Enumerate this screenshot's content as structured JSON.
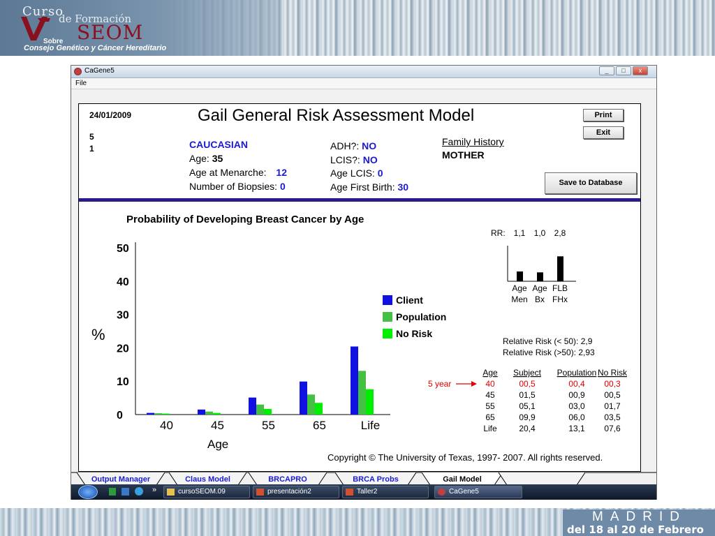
{
  "banner": {
    "curso": "Curso",
    "de_formacion": "de Formación",
    "seom": "SEOM",
    "sobre": "Sobre",
    "consejo": "Consejo Genético y Cáncer Hereditario"
  },
  "footer": {
    "city": "MADRID",
    "dates": "del 18 al 20 de Febrero"
  },
  "window": {
    "title": "CaGene5",
    "menu_file": "File",
    "controls": {
      "minimize": "_",
      "maximize": "□",
      "close": "x"
    }
  },
  "report": {
    "date": "24/01/2009",
    "line1": "5",
    "line2": "1",
    "title": "Gail General Risk Assessment Model",
    "ethnicity": "CAUCASIAN",
    "age_label": "Age:",
    "age_value": "35",
    "menarche_label": "Age at Menarche:",
    "menarche_value": "12",
    "biopsies_label": "Number of Biopsies:",
    "biopsies_value": "0",
    "adh_label": "ADH?:",
    "adh_value": "NO",
    "lcis_label": "LCIS?:",
    "lcis_value": "NO",
    "age_lcis_label": "Age LCIS:",
    "age_lcis_value": "0",
    "first_birth_label": "Age First Birth:",
    "first_birth_value": "30",
    "family_history_label": "Family History",
    "family_history_value": "MOTHER",
    "print_button": "Print",
    "exit_button": "Exit",
    "save_button": "Save to Database",
    "copyright": "Copyright ©  The University of Texas, 1997- 2007.  All rights reserved."
  },
  "chart_data": [
    {
      "type": "bar",
      "title": "Probability of Developing Breast Cancer by Age",
      "xlabel": "Age",
      "ylabel": "%",
      "categories": [
        "40",
        "45",
        "55",
        "65",
        "Life"
      ],
      "ylim": [
        0,
        50
      ],
      "yticks": [
        "0",
        "10",
        "20",
        "30",
        "40",
        "50"
      ],
      "grid": false,
      "legend_position": "right",
      "series": [
        {
          "name": "Client",
          "color": "#1010e0",
          "values": [
            0.5,
            1.5,
            5.1,
            9.9,
            20.4
          ]
        },
        {
          "name": "Population",
          "color": "#44c044",
          "values": [
            0.4,
            0.9,
            3.0,
            6.0,
            13.1
          ]
        },
        {
          "name": "No Risk",
          "color": "#00ee00",
          "values": [
            0.3,
            0.5,
            1.7,
            3.5,
            7.6
          ]
        }
      ]
    },
    {
      "type": "bar",
      "label": "RR:",
      "categories": [
        [
          "Age",
          "Men"
        ],
        [
          "Age",
          "Bx"
        ],
        [
          "FLB",
          "FHx"
        ]
      ],
      "values": [
        1.1,
        1.0,
        2.8
      ],
      "value_labels": [
        "1,1",
        "1,0",
        "2,8"
      ],
      "color": "#000000"
    }
  ],
  "relative_risk": {
    "under50": "Relative Risk (< 50): 2,9",
    "over50": "Relative Risk (>50):  2,93"
  },
  "risk_table": {
    "headers": [
      "Age",
      "Subject",
      "Population",
      "No Risk"
    ],
    "highlight_label": "5 year",
    "highlight_color": "#e00000",
    "rows": [
      [
        "40",
        "00,5",
        "00,4",
        "00,3"
      ],
      [
        "45",
        "01,5",
        "00,9",
        "00,5"
      ],
      [
        "55",
        "05,1",
        "03,0",
        "01,7"
      ],
      [
        "65",
        "09,9",
        "06,0",
        "03,5"
      ],
      [
        "Life",
        "20,4",
        "13,1",
        "07,6"
      ]
    ]
  },
  "tabs": [
    "Output Manager",
    "Claus Model",
    "BRCAPRO",
    "BRCA Probs",
    "Gail Model"
  ],
  "taskbar": {
    "chevron": "»",
    "items": [
      "cursoSEOM.09",
      "presentación2",
      "Taller2",
      "CaGene5"
    ]
  }
}
